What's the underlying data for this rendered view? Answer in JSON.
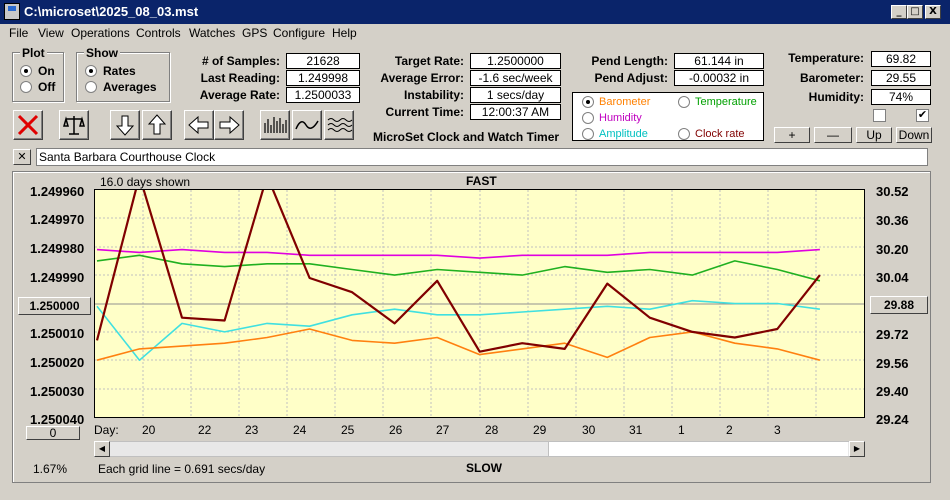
{
  "window": {
    "title": "C:\\microset\\2025_08_03.mst",
    "minimize": "_",
    "maximize": "□",
    "close": "X"
  },
  "menu": [
    "File",
    "View",
    "Operations",
    "Controls",
    "Watches",
    "GPS",
    "Configure",
    "Help"
  ],
  "plot_group": {
    "title": "Plot",
    "options": [
      "On",
      "Off"
    ],
    "selected": "On"
  },
  "show_group": {
    "title": "Show",
    "options": [
      "Rates",
      "Averages"
    ],
    "selected": "Rates"
  },
  "stats": [
    {
      "label": "# of Samples:",
      "value": "21628"
    },
    {
      "label": "Last Reading:",
      "value": "1.249998"
    },
    {
      "label": "Average Rate:",
      "value": "1.2500033"
    }
  ],
  "rates": [
    {
      "label": "Target Rate:",
      "value": "1.2500000"
    },
    {
      "label": "Average Error:",
      "value": "-1.6 sec/week"
    },
    {
      "label": "Instability:",
      "value": "1 secs/day"
    },
    {
      "label": "Current Time:",
      "value": "12:00:37 AM"
    }
  ],
  "pend": [
    {
      "label": "Pend Length:",
      "value": "61.144 in"
    },
    {
      "label": "Pend Adjust:",
      "value": "-0.00032 in"
    }
  ],
  "env": [
    {
      "label": "Temperature:",
      "value": "69.82"
    },
    {
      "label": "Barometer:",
      "value": "29.55"
    },
    {
      "label": "Humidity:",
      "value": "74%"
    }
  ],
  "env_buttons": [
    "+",
    "—",
    "Up",
    "Down"
  ],
  "app_label": "MicroSet Clock and Watch Timer",
  "secondary_options": [
    {
      "label": "Barometer",
      "color": "#ff8000",
      "selected": true
    },
    {
      "label": "Temperature",
      "color": "#00a000",
      "selected": false
    },
    {
      "label": "Humidity",
      "color": "#c000c0",
      "selected": false
    },
    {
      "label": "Clock rate",
      "color": "#800000",
      "selected": false
    },
    {
      "label": "Amplitude",
      "color": "#00c0c0",
      "selected": false
    }
  ],
  "clock_name": "Santa Barbara Courthouse Clock",
  "close_small": "✕",
  "chart_data": {
    "type": "line",
    "top_left_note": "16.0 days shown",
    "top_label": "FAST",
    "bottom_label": "SLOW",
    "grid_note": "Each grid line = 0.691 secs/day",
    "left_axis_ticks": [
      "1.249960",
      "1.249970",
      "1.249980",
      "1.249990",
      "1.250000",
      "1.250010",
      "1.250020",
      "1.250030",
      "1.250040"
    ],
    "right_axis_ticks": [
      "30.52",
      "30.36",
      "30.20",
      "30.04",
      "29.88",
      "29.72",
      "29.56",
      "29.40",
      "29.24"
    ],
    "center_left_button": "1.250000",
    "center_right_button": "29.88",
    "x_axis_prefix": "Day:",
    "x_ticks": [
      "20",
      "22",
      "23",
      "24",
      "25",
      "26",
      "27",
      "28",
      "29",
      "30",
      "31",
      "1",
      "2",
      "3"
    ],
    "zero_button": "0",
    "percent_label": "1.67%",
    "series": [
      {
        "name": "Humidity",
        "color": "#e000e0",
        "values": [
          1.249981,
          1.249982,
          1.249981,
          1.249982,
          1.249982,
          1.249983,
          1.249983,
          1.249983,
          1.249983,
          1.249984,
          1.249983,
          1.249983,
          1.249983,
          1.249982,
          1.249982,
          1.249982,
          1.249982,
          1.249981
        ]
      },
      {
        "name": "Temperature",
        "color": "#20b020",
        "values": [
          1.249985,
          1.249983,
          1.249986,
          1.249987,
          1.249986,
          1.249986,
          1.249988,
          1.24999,
          1.249988,
          1.249989,
          1.24999,
          1.249987,
          1.249989,
          1.249988,
          1.24999,
          1.249985,
          1.249988,
          1.249992
        ]
      },
      {
        "name": "Amplitude",
        "color": "#40e0e0",
        "values": [
          1.250001,
          1.25002,
          1.250007,
          1.25001,
          1.250007,
          1.250008,
          1.250004,
          1.250002,
          1.250004,
          1.250004,
          1.250003,
          1.250002,
          1.250001,
          1.250002,
          1.249999,
          1.25,
          1.25,
          1.250002
        ]
      },
      {
        "name": "Barometer",
        "color": "#ff8010",
        "values": [
          1.25002,
          1.250016,
          1.250015,
          1.250014,
          1.250012,
          1.250009,
          1.250013,
          1.250014,
          1.250012,
          1.250018,
          1.250016,
          1.250014,
          1.250019,
          1.250012,
          1.25001,
          1.250014,
          1.250016,
          1.25002
        ]
      },
      {
        "name": "Clock rate",
        "color": "#800000",
        "values": [
          1.250013,
          1.249955,
          1.250005,
          1.250006,
          1.249955,
          1.249991,
          1.249996,
          1.250007,
          1.249992,
          1.250017,
          1.250014,
          1.250016,
          1.249993,
          1.250005,
          1.25001,
          1.250012,
          1.250009,
          1.24999
        ]
      }
    ],
    "ylim": [
      1.24996,
      1.25004
    ]
  }
}
